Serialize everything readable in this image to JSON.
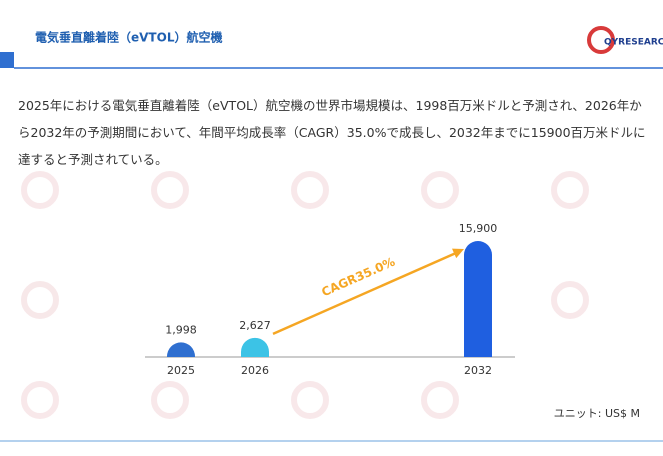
{
  "header": {
    "title": "電気垂直離着陸（eVTOL）航空機",
    "logo": "QYRESEARCH"
  },
  "description": "2025年における電気垂直離着陸（eVTOL）航空機の世界市場規模は、1998百万米ドルと予測され、2026年から2032年の予測期間において、年間平均成長率（CAGR）35.0%で成長し、2032年までに15900百万米ドルに達すると予測されている。",
  "chart_data": {
    "type": "bar",
    "categories": [
      "2025",
      "2026",
      "2032"
    ],
    "values": [
      1998,
      2627,
      15900
    ],
    "value_labels": [
      "1,998",
      "2,627",
      "15,900"
    ],
    "colors": [
      "#2f6fd0",
      "#3cc3e6",
      "#1f5fe0"
    ],
    "annotation": "CAGR35.0%",
    "unit": "ユニット: US$ M"
  }
}
